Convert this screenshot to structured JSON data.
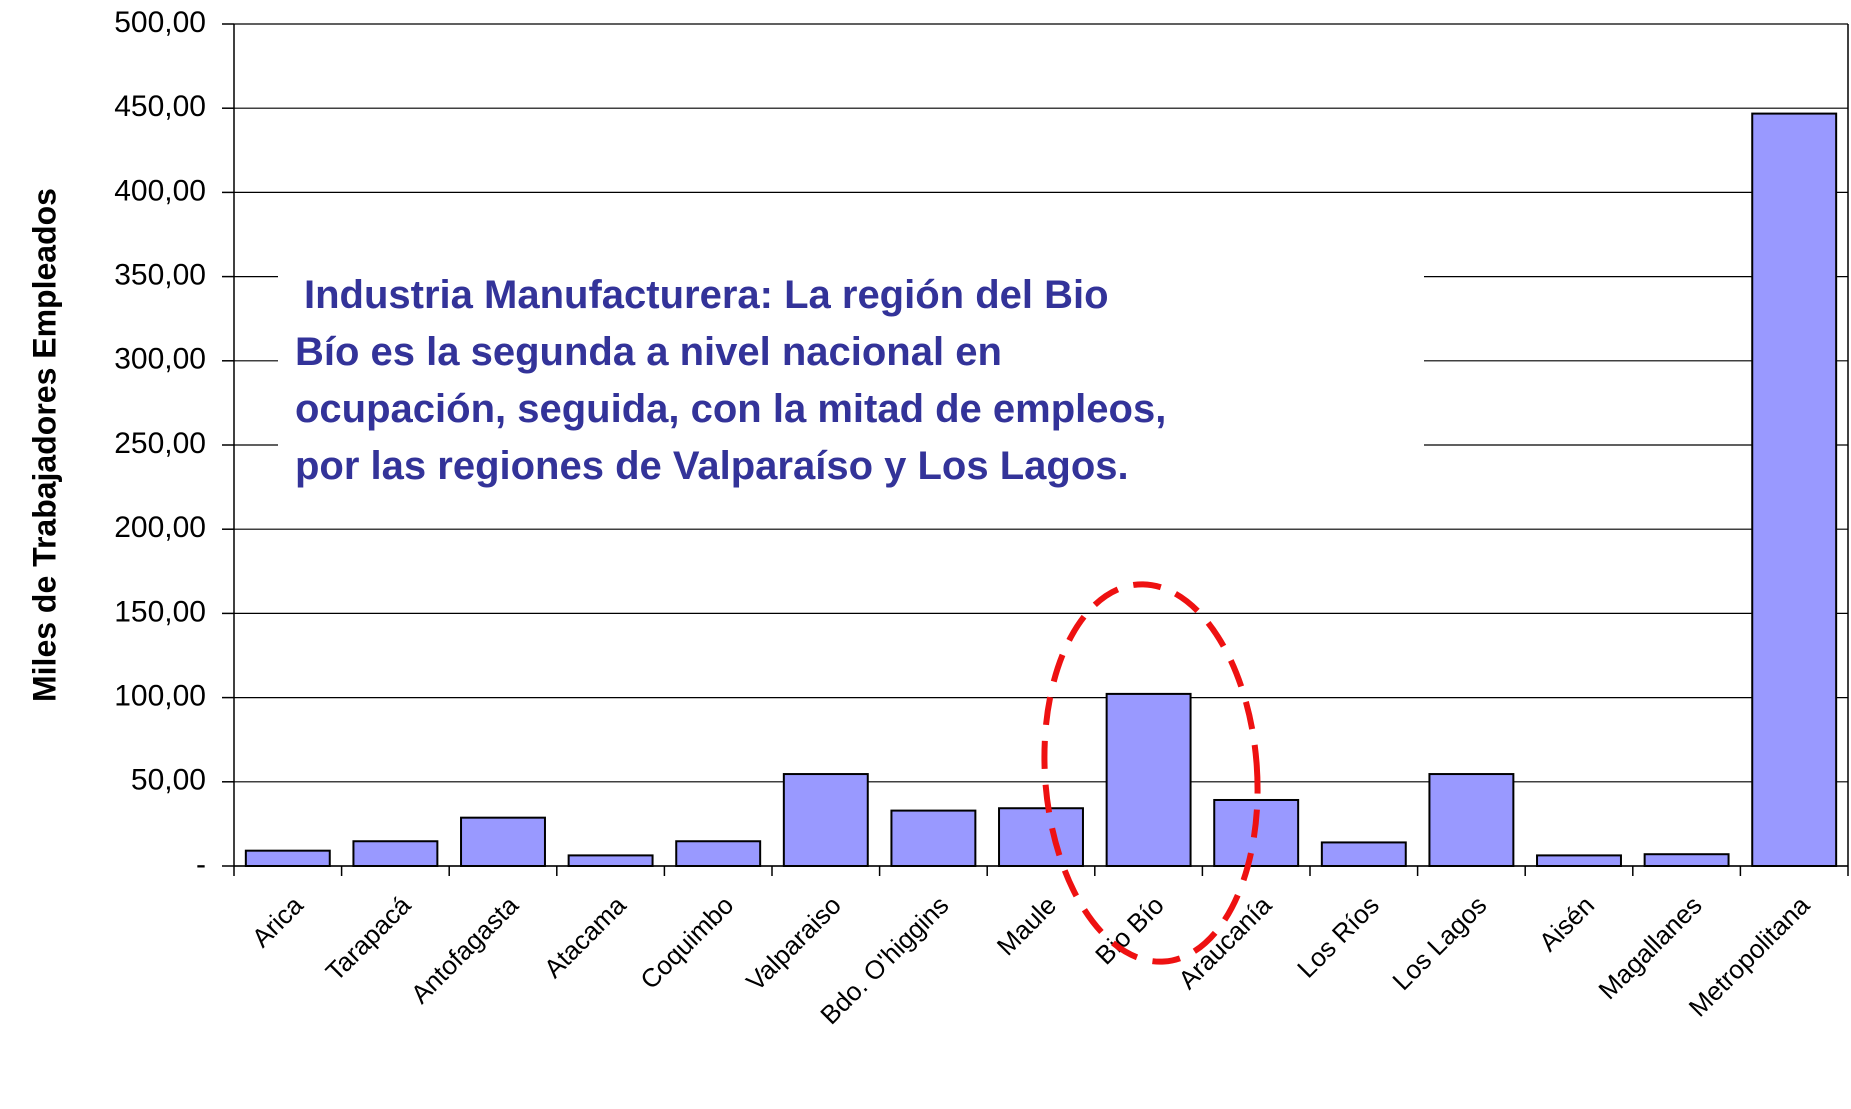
{
  "chart_data": {
    "type": "bar",
    "y_label": "Miles de Trabajadores Empleados",
    "annotation": [
      "Industria Manufacturera: La región del Bio",
      "Bío es la segunda a nivel nacional en",
      "ocupación, seguida, con la mitad de empleos,",
      "por las regiones de Valparaíso y Los Lagos."
    ],
    "categories": [
      "Arica",
      "Tarapacá",
      "Antofagasta",
      "Atacama",
      "Coquimbo",
      "Valparaiso",
      "Bdo. O'higgins",
      "Maule",
      "Bio Bío",
      "Araucanía",
      "Los Ríos",
      "Los Lagos",
      "Aisén",
      "Magallanes",
      "Metropolitana"
    ],
    "values": [
      9.1,
      14.7,
      28.7,
      6.3,
      14.7,
      54.6,
      32.9,
      34.3,
      102.2,
      39.2,
      14,
      54.6,
      6.3,
      7,
      446.8
    ],
    "color": "#9999ff",
    "ylim": [
      0,
      500
    ],
    "yticks": [
      {
        "value": 0,
        "label": "-"
      },
      {
        "value": 50,
        "label": "50,00"
      },
      {
        "value": 100,
        "label": "100,00"
      },
      {
        "value": 150,
        "label": "150,00"
      },
      {
        "value": 200,
        "label": "200,00"
      },
      {
        "value": 250,
        "label": "250,00"
      },
      {
        "value": 300,
        "label": "300,00"
      },
      {
        "value": 350,
        "label": "350,00"
      },
      {
        "value": 400,
        "label": "400,00"
      },
      {
        "value": 450,
        "label": "450,00"
      },
      {
        "value": 500,
        "label": "500,00"
      }
    ],
    "grid": true
  }
}
